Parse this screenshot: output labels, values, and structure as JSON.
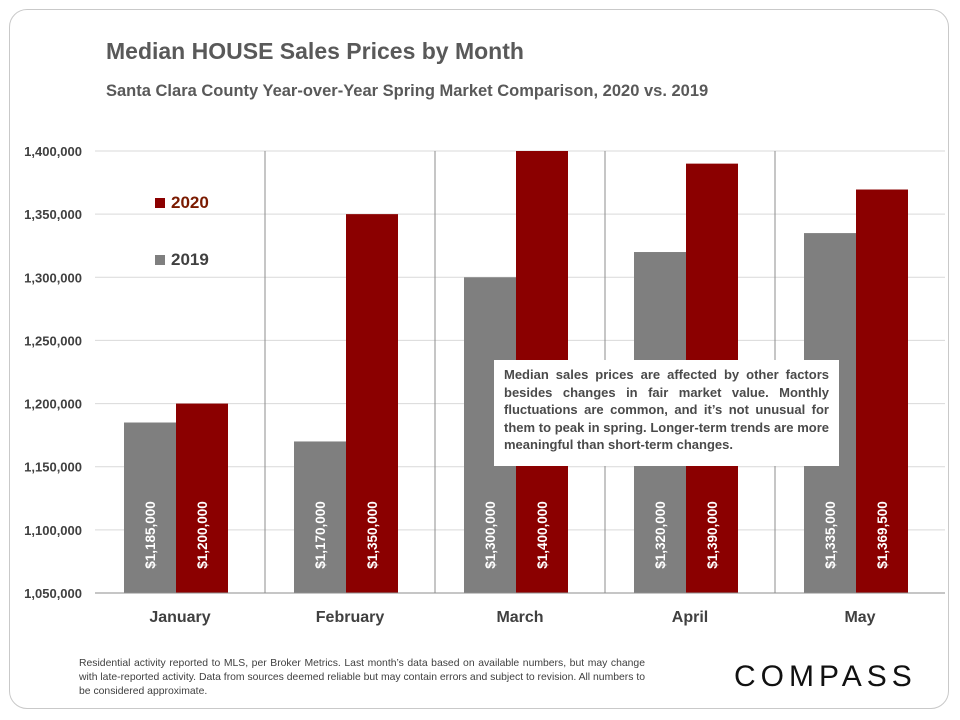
{
  "title": "Median HOUSE Sales Prices by Month",
  "subtitle": "Santa Clara County  Year-over-Year Spring Market  Comparison,  2020 vs. 2019",
  "annotation": "Median sales prices are affected by other factors besides changes in fair market value. Monthly fluctuations are common, and it’s not unusual for them to peak in spring. Longer-term trends are more meaningful than short-term changes.",
  "footnote": "Residential activity reported to MLS, per Broker Metrics. Last month’s data based on available numbers, but may change with late-reported activity. Data from sources deemed reliable but may contain errors and subject to revision. All numbers to be considered approximate.",
  "logo": "COMPASS",
  "colors": {
    "2019": "#7f7f7f",
    "2020": "#8b0000",
    "label2020": "#7a1a00"
  },
  "chart_data": {
    "type": "bar",
    "categories": [
      "January",
      "February",
      "March",
      "April",
      "May"
    ],
    "series": [
      {
        "name": "2019",
        "values": [
          1185000,
          1170000,
          1300000,
          1320000,
          1335000
        ],
        "labels": [
          "$1,185,000",
          "$1,170,000",
          "$1,300,000",
          "$1,320,000",
          "$1,335,000"
        ]
      },
      {
        "name": "2020",
        "values": [
          1200000,
          1350000,
          1400000,
          1390000,
          1369500
        ],
        "labels": [
          "$1,200,000",
          "$1,350,000",
          "$1,400,000",
          "$1,390,000",
          "$1,369,500"
        ]
      }
    ],
    "ylim": [
      1050000,
      1400000
    ],
    "yticks": [
      1050000,
      1100000,
      1150000,
      1200000,
      1250000,
      1300000,
      1350000,
      1400000
    ],
    "ytick_labels": [
      "1,050,000",
      "1,100,000",
      "1,150,000",
      "1,200,000",
      "1,250,000",
      "1,300,000",
      "1,350,000",
      "1,400,000"
    ],
    "legend_position": "top-left",
    "grid": true
  }
}
